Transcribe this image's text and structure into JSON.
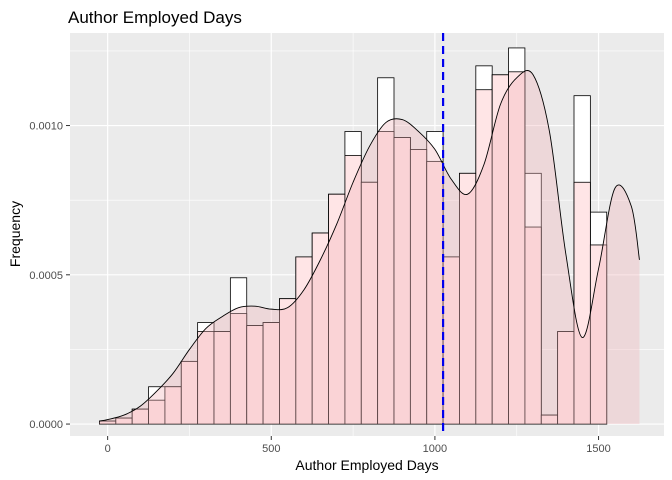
{
  "chart_data": {
    "type": "histogram",
    "title": "Author Employed Days",
    "xlabel": "Author Employed Days",
    "ylabel": "Frequency",
    "xlim": [
      -115,
      1700
    ],
    "ylim": [
      -4e-05,
      0.00131
    ],
    "x_ticks": [
      0,
      500,
      1000,
      1500
    ],
    "x_tick_labels": [
      "0",
      "500",
      "1000",
      "1500"
    ],
    "y_ticks": [
      0,
      0.0005,
      0.001
    ],
    "y_tick_labels": [
      "0.0000",
      "0.0005",
      "0.0010"
    ],
    "bin_width": 50,
    "bin_centers": [
      0,
      50,
      100,
      150,
      200,
      250,
      300,
      350,
      400,
      450,
      500,
      550,
      600,
      650,
      700,
      750,
      800,
      850,
      900,
      950,
      1000,
      1050,
      1100,
      1150,
      1200,
      1250,
      1300,
      1350,
      1400,
      1450,
      1500,
      1550,
      1600
    ],
    "counts_histogram": [
      1e-05,
      2e-05,
      5e-05,
      0.000125,
      0.000125,
      0.00021,
      0.00034,
      0.00031,
      0.00049,
      0.00033,
      0.00034,
      0.00042,
      0.00056,
      0.00064,
      0.00077,
      0.00098,
      0.00081,
      0.00116,
      0.00096,
      0.00092,
      0.00098,
      0.00056,
      0.00084,
      0.0012,
      0.00117,
      0.00126,
      0.00084,
      3e-05,
      0.00031,
      0.0011,
      0.00071,
      0,
      0
    ],
    "density_histogram": [
      1e-05,
      2e-05,
      5e-05,
      8e-05,
      0.000125,
      0.00021,
      0.00031,
      0.00031,
      0.00037,
      0.00033,
      0.00034,
      0.00042,
      0.00056,
      0.00064,
      0.00077,
      0.0009,
      0.00081,
      0.00098,
      0.00096,
      0.00092,
      0.00088,
      0.00056,
      0.00084,
      0.00112,
      0.00117,
      0.00118,
      0.00066,
      3e-05,
      0.00031,
      0.00081,
      0.0006,
      0,
      0
    ],
    "density_curve": {
      "x": [
        -25,
        0,
        50,
        100,
        150,
        200,
        250,
        300,
        350,
        400,
        450,
        500,
        550,
        600,
        650,
        700,
        750,
        800,
        850,
        900,
        950,
        1000,
        1050,
        1100,
        1150,
        1200,
        1250,
        1300,
        1350,
        1400,
        1450,
        1500,
        1550,
        1600,
        1625
      ],
      "y": [
        1e-05,
        1.5e-05,
        3e-05,
        6e-05,
        0.00011,
        0.00017,
        0.00025,
        0.00032,
        0.00036,
        0.00039,
        0.000395,
        0.000385,
        0.00039,
        0.00045,
        0.00055,
        0.00067,
        0.00081,
        0.00093,
        0.00101,
        0.00102,
        0.00098,
        0.00092,
        0.00082,
        0.00077,
        0.00087,
        0.00107,
        0.00116,
        0.00117,
        0.00098,
        0.00057,
        0.00029,
        0.00052,
        0.00079,
        0.00073,
        0.00055
      ]
    },
    "mean_line": {
      "x": 1025,
      "style": "dashed",
      "color": "#0000ee"
    },
    "colors": {
      "panel_background": "#ebebeb",
      "grid_major": "#ffffff",
      "histogram_fill": "#ffffff",
      "density_fill": "#ffe0e2",
      "density_fill_opacity": 0.85,
      "outline": "#000000"
    },
    "grid": true,
    "legend": "none"
  }
}
